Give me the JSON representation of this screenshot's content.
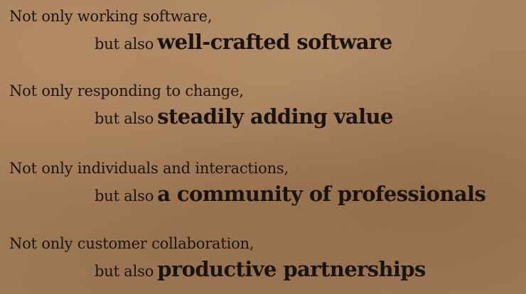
{
  "stanzas": [
    {
      "line1": "Not only working software,",
      "lead": "but also",
      "emph": "well-crafted software"
    },
    {
      "line1": "Not only responding to change,",
      "lead": "but also",
      "emph": "steadily adding value"
    },
    {
      "line1": "Not only individuals and interactions,",
      "lead": "but also",
      "emph": "a community of professionals"
    },
    {
      "line1": "Not only customer collaboration,",
      "lead": "but also",
      "emph": "productive partnerships"
    }
  ],
  "colors": {
    "background": "#a8825f",
    "text": "#1a1410"
  }
}
